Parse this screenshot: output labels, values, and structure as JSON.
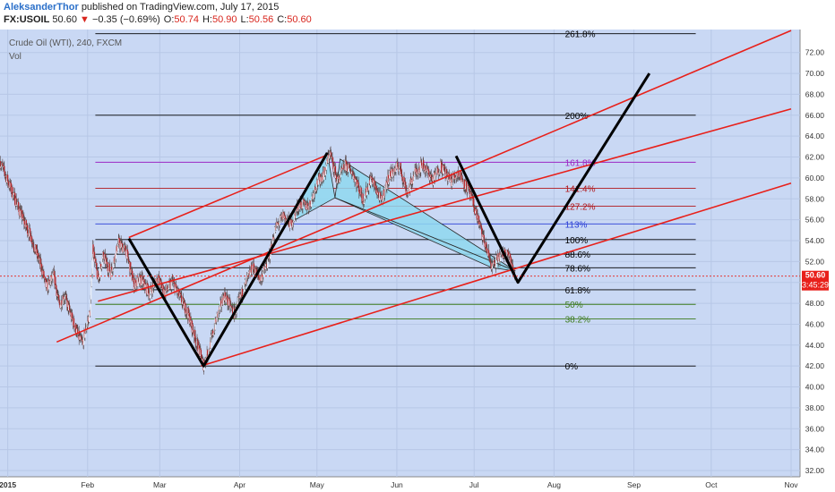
{
  "header": {
    "author": "AleksanderThor",
    "published": "published on TradingView.com, July 17, 2015",
    "symbol": "FX:USOIL",
    "price": "50.60",
    "change_arrow": "▼",
    "change": "−0.35 (−0.69%)",
    "o_label": "O:",
    "o_val": "50.74",
    "h_label": "H:",
    "h_val": "50.90",
    "l_label": "L:",
    "l_val": "50.56",
    "c_label": "C:",
    "c_val": "50.60"
  },
  "colors": {
    "plot_bg": "#c9d8f4",
    "channel": "#e8201a",
    "abcd": "#000000",
    "pattern_fill": "#8fd8ee",
    "price_tag": "#e8201a"
  },
  "chart_data": {
    "type": "candlestick",
    "title": "Crude Oil (WTI), 240, FXCM",
    "volume_label": "Vol",
    "x_ticks": [
      "2015",
      "Feb",
      "Mar",
      "Apr",
      "May",
      "Jun",
      "Jul",
      "Aug",
      "Sep",
      "Oct",
      "Nov"
    ],
    "y_ticks": [
      32.0,
      34.0,
      36.0,
      38.0,
      40.0,
      42.0,
      44.0,
      46.0,
      48.0,
      50.0,
      52.0,
      54.0,
      56.0,
      58.0,
      60.0,
      62.0,
      64.0,
      66.0,
      68.0,
      70.0,
      72.0
    ],
    "ylim": [
      31.4,
      74.2
    ],
    "last_price": "50.60",
    "countdown": "3:45:29",
    "price_path": [
      [
        "2014-12-29",
        61.6
      ],
      [
        "2015-01-03",
        58.5
      ],
      [
        "2015-01-07",
        56.0
      ],
      [
        "2015-01-10",
        54.4
      ],
      [
        "2015-01-14",
        51.5
      ],
      [
        "2015-01-16",
        49.5
      ],
      [
        "2015-01-19",
        50.6
      ],
      [
        "2015-01-21",
        47.8
      ],
      [
        "2015-01-23",
        48.8
      ],
      [
        "2015-01-26",
        46.5
      ],
      [
        "2015-01-29",
        44.5
      ],
      [
        "2015-01-30",
        44.2
      ],
      [
        "2015-02-02",
        47.2
      ],
      [
        "2015-02-03",
        53.4
      ],
      [
        "2015-02-05",
        50.3
      ],
      [
        "2015-02-07",
        52.5
      ],
      [
        "2015-02-10",
        51.0
      ],
      [
        "2015-02-13",
        53.8
      ],
      [
        "2015-02-16",
        53.0
      ],
      [
        "2015-02-19",
        49.8
      ],
      [
        "2015-02-22",
        50.2
      ],
      [
        "2015-02-25",
        49.0
      ],
      [
        "2015-02-28",
        50.4
      ],
      [
        "2015-03-03",
        49.0
      ],
      [
        "2015-03-06",
        50.0
      ],
      [
        "2015-03-09",
        48.5
      ],
      [
        "2015-03-12",
        47.0
      ],
      [
        "2015-03-15",
        44.5
      ],
      [
        "2015-03-18",
        42.1
      ],
      [
        "2015-03-20",
        43.5
      ],
      [
        "2015-03-23",
        46.5
      ],
      [
        "2015-03-26",
        48.8
      ],
      [
        "2015-03-30",
        47.0
      ],
      [
        "2015-04-02",
        49.0
      ],
      [
        "2015-04-06",
        51.5
      ],
      [
        "2015-04-09",
        50.3
      ],
      [
        "2015-04-12",
        52.0
      ],
      [
        "2015-04-15",
        55.2
      ],
      [
        "2015-04-18",
        56.4
      ],
      [
        "2015-04-21",
        55.5
      ],
      [
        "2015-04-24",
        57.5
      ],
      [
        "2015-04-28",
        57.3
      ],
      [
        "2015-05-01",
        59.5
      ],
      [
        "2015-05-04",
        60.5
      ],
      [
        "2015-05-06",
        62.5
      ],
      [
        "2015-05-09",
        59.7
      ],
      [
        "2015-05-12",
        61.2
      ],
      [
        "2015-05-15",
        60.5
      ],
      [
        "2015-05-19",
        57.9
      ],
      [
        "2015-05-22",
        60.0
      ],
      [
        "2015-05-26",
        57.8
      ],
      [
        "2015-05-29",
        60.2
      ],
      [
        "2015-06-02",
        61.2
      ],
      [
        "2015-06-05",
        58.6
      ],
      [
        "2015-06-08",
        60.5
      ],
      [
        "2015-06-11",
        61.3
      ],
      [
        "2015-06-15",
        59.8
      ],
      [
        "2015-06-18",
        61.2
      ],
      [
        "2015-06-22",
        59.7
      ],
      [
        "2015-06-25",
        60.5
      ],
      [
        "2015-06-29",
        58.7
      ],
      [
        "2015-07-02",
        56.5
      ],
      [
        "2015-07-05",
        53.8
      ],
      [
        "2015-07-08",
        51.5
      ],
      [
        "2015-07-11",
        52.5
      ],
      [
        "2015-07-14",
        53.0
      ],
      [
        "2015-07-16",
        51.2
      ],
      [
        "2015-07-17",
        50.6
      ]
    ],
    "fib_levels": [
      {
        "label": "261.8%",
        "value": 73.8,
        "color": "#000000"
      },
      {
        "label": "200%",
        "value": 66.0,
        "color": "#000000"
      },
      {
        "label": "161.8%",
        "value": 61.5,
        "color": "#9b27c4"
      },
      {
        "label": "141.4%",
        "value": 59.0,
        "color": "#b0171b"
      },
      {
        "label": "127.2%",
        "value": 57.3,
        "color": "#b0171b"
      },
      {
        "label": "113%",
        "value": 55.6,
        "color": "#2b3fd6"
      },
      {
        "label": "100%",
        "value": 54.1,
        "color": "#000000"
      },
      {
        "label": "88.6%",
        "value": 52.7,
        "color": "#000000"
      },
      {
        "label": "78.6%",
        "value": 51.4,
        "color": "#000000"
      },
      {
        "label": "61.8%",
        "value": 49.3,
        "color": "#000000"
      },
      {
        "label": "50%",
        "value": 47.9,
        "color": "#3c7a1c"
      },
      {
        "label": "38.2%",
        "value": 46.5,
        "color": "#3c7a1c"
      },
      {
        "label": "0%",
        "value": 42.0,
        "color": "#000000"
      }
    ],
    "channel_lines": [
      [
        [
          "2015-01-20",
          44.3
        ],
        [
          "2015-11-01",
          74.1
        ]
      ],
      [
        [
          "2015-02-05",
          48.2
        ],
        [
          "2015-11-01",
          66.6
        ]
      ],
      [
        [
          "2015-03-17",
          42.0
        ],
        [
          "2015-11-01",
          59.5
        ]
      ],
      [
        [
          "2015-02-17",
          54.3
        ],
        [
          "2015-05-05",
          62.2
        ]
      ]
    ],
    "abcd_projection": [
      [
        [
          "2015-02-17",
          54.2
        ],
        [
          "2015-03-18",
          42.0
        ],
        [
          "2015-05-05",
          62.4
        ]
      ],
      [
        [
          "2015-06-24",
          62.1
        ],
        [
          "2015-07-18",
          50.0
        ],
        [
          "2015-09-07",
          70.0
        ]
      ]
    ],
    "harmonic_pattern": [
      [
        [
          "2015-04-19",
          55.5
        ],
        [
          "2015-05-05",
          62.4
        ],
        [
          "2015-05-08",
          58.1
        ]
      ],
      [
        [
          "2015-05-08",
          58.1
        ],
        [
          "2015-05-10",
          61.8
        ],
        [
          "2015-07-17",
          51.1
        ]
      ],
      [
        [
          "2015-05-08",
          58.1
        ],
        [
          "2015-07-08",
          51.4
        ],
        [
          "2015-07-17",
          51.1
        ]
      ]
    ]
  }
}
